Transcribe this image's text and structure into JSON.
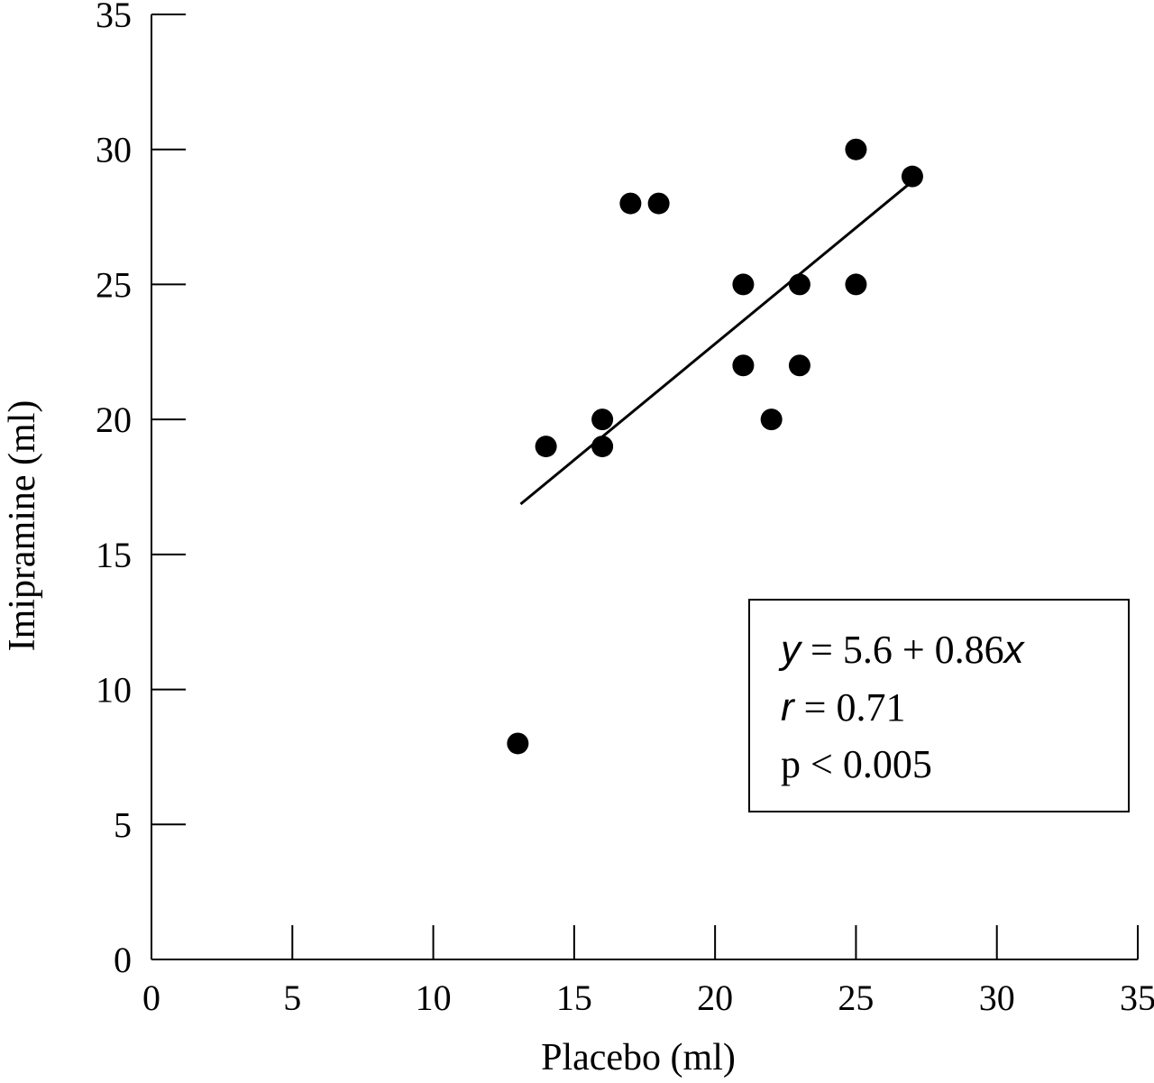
{
  "chart_data": {
    "type": "scatter",
    "xlabel": "Placebo (ml)",
    "ylabel": "Imipramine (ml)",
    "xlim": [
      0,
      35
    ],
    "ylim": [
      0,
      35
    ],
    "xticks": [
      "0",
      "5",
      "10",
      "15",
      "20",
      "25",
      "30",
      "35"
    ],
    "yticks": [
      "0",
      "5",
      "10",
      "15",
      "20",
      "25",
      "30",
      "35"
    ],
    "grid": false,
    "points": [
      {
        "x": 13,
        "y": 8
      },
      {
        "x": 14,
        "y": 19
      },
      {
        "x": 16,
        "y": 20
      },
      {
        "x": 16,
        "y": 19
      },
      {
        "x": 17,
        "y": 28
      },
      {
        "x": 18,
        "y": 28
      },
      {
        "x": 21,
        "y": 25
      },
      {
        "x": 21,
        "y": 22
      },
      {
        "x": 22,
        "y": 20
      },
      {
        "x": 23,
        "y": 25
      },
      {
        "x": 23,
        "y": 22
      },
      {
        "x": 25,
        "y": 30
      },
      {
        "x": 25,
        "y": 25
      },
      {
        "x": 27,
        "y": 29
      }
    ],
    "regression_line": {
      "intercept": 5.6,
      "slope": 0.86,
      "x_range": [
        13.1,
        27
      ]
    },
    "annotation": {
      "line1_var": "y",
      "line1_rest": " = 5.6 + 0.86",
      "line1_var2": "x",
      "line2_var": "r",
      "line2_rest": " = 0.71",
      "line3": "p < 0.005"
    }
  }
}
